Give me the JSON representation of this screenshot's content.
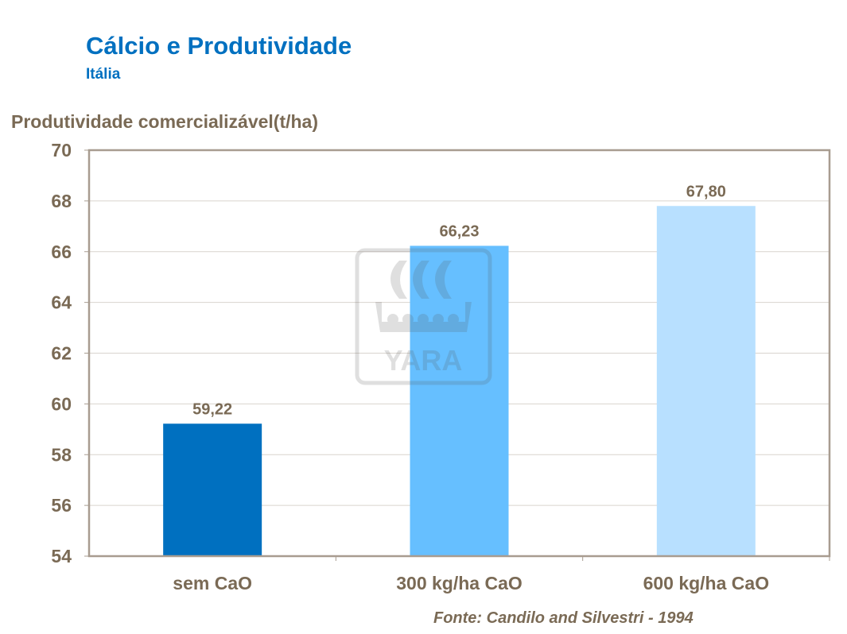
{
  "header": {
    "title": "Cálcio e Produtividade",
    "subtitle": "Itália"
  },
  "source": "Fonte: Candilo and Silvestri - 1994",
  "watermark": {
    "text": "YARA"
  },
  "chart_data": {
    "type": "bar",
    "title": "Cálcio e Produtividade",
    "subtitle": "Itália",
    "ylabel": "Produtividade comercializável(t/ha)",
    "xlabel": "",
    "categories": [
      "sem CaO",
      "300 kg/ha CaO",
      "600 kg/ha CaO"
    ],
    "values": [
      59.22,
      66.23,
      67.8
    ],
    "data_labels": [
      "59,22",
      "66,23",
      "67,80"
    ],
    "colors": [
      "#0070C0",
      "#66BFFF",
      "#B8E0FF"
    ],
    "ylim": [
      54,
      70
    ],
    "yticks": [
      54,
      56,
      58,
      60,
      62,
      64,
      66,
      68,
      70
    ],
    "grid": true,
    "legend": "none"
  }
}
